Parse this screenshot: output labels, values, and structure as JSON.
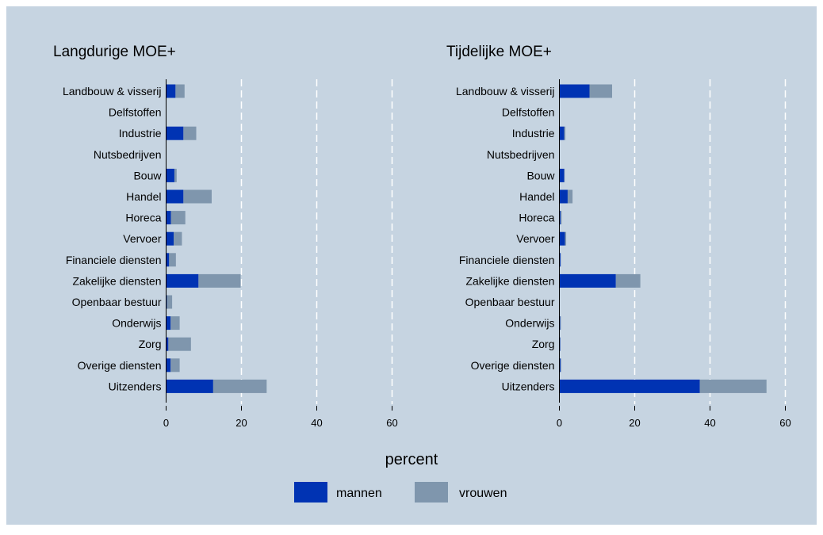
{
  "colors": {
    "outer_background": "#ffffff",
    "plot_background": "#c6d4e1",
    "mannen": "#0033b3",
    "vrouwen": "#7f96ad",
    "gridline": "#ffffff",
    "axis": "#000000"
  },
  "xlabel": "percent",
  "legend": {
    "placement": "bottom-center",
    "items": [
      {
        "key": "mannen",
        "label": "mannen"
      },
      {
        "key": "vrouwen",
        "label": "vrouwen"
      }
    ]
  },
  "chart_data": [
    {
      "type": "bar",
      "orientation": "horizontal",
      "stacked": true,
      "title": "Langdurige MOE+",
      "categories": [
        "Landbouw & visserij",
        "Delfstoffen",
        "Industrie",
        "Nutsbedrijven",
        "Bouw",
        "Handel",
        "Horeca",
        "Vervoer",
        "Financiele diensten",
        "Zakelijke diensten",
        "Openbaar bestuur",
        "Onderwijs",
        "Zorg",
        "Overige diensten",
        "Uitzenders"
      ],
      "series": [
        {
          "name": "mannen",
          "values": [
            2.5,
            0,
            4.6,
            0,
            2.2,
            4.6,
            1.3,
            2.0,
            0.8,
            8.6,
            0.2,
            1.2,
            0.6,
            1.2,
            12.5
          ]
        },
        {
          "name": "vrouwen",
          "values": [
            2.4,
            0,
            3.4,
            0,
            0.6,
            7.5,
            3.8,
            2.2,
            1.8,
            11.2,
            1.4,
            2.4,
            6.0,
            2.4,
            14.2
          ]
        }
      ],
      "xlim": [
        0,
        60
      ],
      "xticks": [
        0,
        20,
        40,
        60
      ],
      "grid": true
    },
    {
      "type": "bar",
      "orientation": "horizontal",
      "stacked": true,
      "title": "Tijdelijke MOE+",
      "categories": [
        "Landbouw & visserij",
        "Delfstoffen",
        "Industrie",
        "Nutsbedrijven",
        "Bouw",
        "Handel",
        "Horeca",
        "Vervoer",
        "Financiele diensten",
        "Zakelijke diensten",
        "Openbaar bestuur",
        "Onderwijs",
        "Zorg",
        "Overige diensten",
        "Uitzenders"
      ],
      "series": [
        {
          "name": "mannen",
          "values": [
            8.0,
            0,
            1.3,
            0,
            1.3,
            2.2,
            0.3,
            1.5,
            0.3,
            15.0,
            0,
            0.2,
            0.2,
            0.3,
            37.3
          ]
        },
        {
          "name": "vrouwen",
          "values": [
            6.0,
            0,
            0.3,
            0,
            0.1,
            1.3,
            0.3,
            0.3,
            0.1,
            6.5,
            0,
            0.2,
            0.1,
            0.2,
            17.7
          ]
        }
      ],
      "xlim": [
        0,
        60
      ],
      "xticks": [
        0,
        20,
        40,
        60
      ],
      "grid": true
    }
  ]
}
